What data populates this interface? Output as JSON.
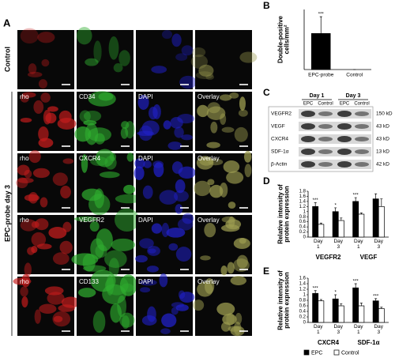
{
  "panel_a": {
    "label": "A",
    "control_label": "Control",
    "epc_label": "EPC-probe day 3",
    "image_labels": [
      [
        "rho",
        "CD34",
        "DAPI",
        "Overlay"
      ],
      [
        "rho",
        "CXCR4",
        "DAPI",
        "Overlay"
      ],
      [
        "rho",
        "VEGFR2",
        "DAPI",
        "Overlay"
      ],
      [
        "rho",
        "CD133",
        "DAPI",
        "Overlay"
      ]
    ]
  },
  "panel_b": {
    "label": "B",
    "chart": {
      "type": "bar",
      "y_label": "Double-positive cells/mm²",
      "ylim": [
        0,
        25
      ],
      "categories": [
        "EPC-probe",
        "Control"
      ],
      "series": [
        {
          "color": "#000000",
          "values": [
            15,
            0
          ],
          "errors": [
            7,
            0
          ],
          "annotations": [
            "***",
            null
          ]
        }
      ]
    }
  },
  "panel_c": {
    "label": "C",
    "days": [
      "Day 1",
      "Day 3"
    ],
    "lanes": [
      "EPC",
      "Control",
      "EPC",
      "Control"
    ],
    "proteins": [
      "VEGFR2",
      "VEGF",
      "CXCR4",
      "SDF-1α",
      "β-Actin"
    ],
    "sizes": [
      "150 kD",
      "43 kD",
      "43 kD",
      "13 kD",
      "42 kD"
    ]
  },
  "panel_d": {
    "label": "D",
    "chart": {
      "type": "bar",
      "y_label": "Relative intensity of protein expression",
      "ylim": [
        0,
        1.8
      ],
      "yticks": [
        0,
        0.2,
        0.4,
        0.6,
        0.8,
        1,
        1.2,
        1.4,
        1.6,
        1.8
      ],
      "categories": [
        "Day 1",
        "Day 3",
        "Day 1",
        "Day 3"
      ],
      "groups": [
        "VEGFR2",
        "VEGF"
      ],
      "series": [
        {
          "color": "#000000",
          "values": [
            1.2,
            1.0,
            1.4,
            1.5
          ],
          "errors": [
            0.15,
            0.15,
            0.15,
            0.2
          ],
          "annotations": [
            "***",
            "*",
            "***",
            null
          ]
        },
        {
          "color": "#ffffff",
          "values": [
            0.5,
            0.65,
            0.9,
            1.2
          ],
          "errors": [
            0.05,
            0.1,
            0.05,
            0.3
          ],
          "annotations": [
            null,
            null,
            null,
            null
          ]
        }
      ]
    }
  },
  "panel_e": {
    "label": "E",
    "chart": {
      "type": "bar",
      "y_label": "Relative intensity of protein expression",
      "ylim": [
        0,
        1.6
      ],
      "yticks": [
        0,
        0.2,
        0.4,
        0.6,
        0.8,
        1,
        1.2,
        1.4,
        1.6
      ],
      "categories": [
        "Day 1",
        "Day 3",
        "Day 1",
        "Day 3"
      ],
      "groups": [
        "CXCR4",
        "SDF-1α"
      ],
      "series": [
        {
          "color": "#000000",
          "values": [
            1.05,
            0.85,
            1.25,
            0.78
          ],
          "errors": [
            0.1,
            0.15,
            0.15,
            0.08
          ],
          "annotations": [
            "***",
            "*",
            "***",
            "***"
          ]
        },
        {
          "color": "#ffffff",
          "values": [
            0.78,
            0.6,
            0.6,
            0.5
          ],
          "errors": [
            0.05,
            0.08,
            0.1,
            0.05
          ],
          "annotations": [
            null,
            null,
            null,
            null
          ]
        }
      ]
    }
  },
  "legend": {
    "names": [
      "EPC",
      "Control"
    ],
    "colors": [
      "#000000",
      "#ffffff"
    ]
  }
}
